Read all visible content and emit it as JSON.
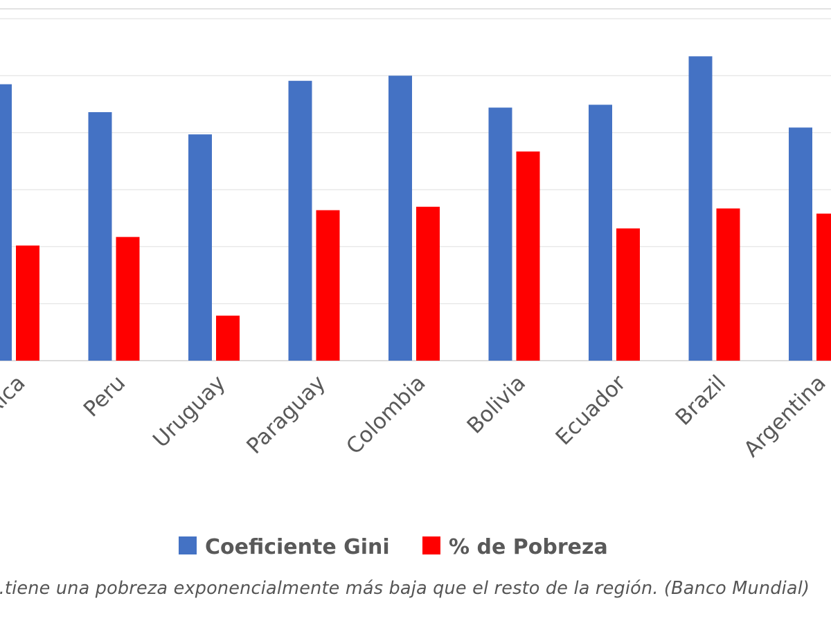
{
  "chart_data": {
    "type": "bar",
    "categories": [
      "Costa Rica",
      "Peru",
      "Uruguay",
      "Paraguay",
      "Colombia",
      "Bolivia",
      "Ecuador",
      "Brazil",
      "Argentina"
    ],
    "series": [
      {
        "name": "Coeficiente Gini",
        "color": "#4472C4",
        "values": [
          48.5,
          43.6,
          39.7,
          49.1,
          50.0,
          44.4,
          44.9,
          53.4,
          40.9
        ]
      },
      {
        "name": "% de Pobreza",
        "color": "#FF0000",
        "values": [
          20.2,
          21.7,
          7.9,
          26.4,
          27.0,
          36.7,
          23.2,
          26.7,
          25.8
        ]
      }
    ],
    "ylim": [
      0,
      60
    ],
    "grid": true,
    "legend": "bottom-center",
    "title": "",
    "xlabel": "",
    "ylabel": ""
  },
  "caption": "...tiene una pobreza exponencialmente más baja que el resto de la región. (Banco Mundial)"
}
